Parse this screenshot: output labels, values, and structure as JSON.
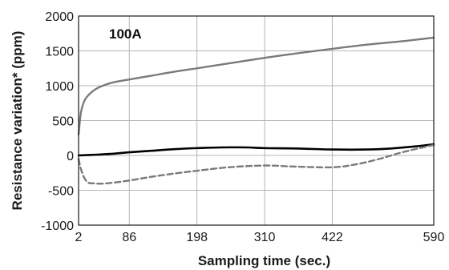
{
  "chart_data": {
    "type": "line",
    "title": "",
    "xlabel": "Sampling time (sec.)",
    "ylabel": "Resistance variation* (ppm)",
    "annotation": "100A",
    "xlim": [
      2,
      590
    ],
    "ylim": [
      -1000,
      2000
    ],
    "xticks": [
      2,
      86,
      198,
      310,
      422,
      590
    ],
    "yticks": [
      2000,
      1500,
      1000,
      500,
      0,
      -500,
      -1000
    ],
    "grid": true,
    "legend": "none",
    "series": [
      {
        "color": "#7a7a7a",
        "style": "solid",
        "x": [
          2,
          6,
          12,
          20,
          30,
          45,
          60,
          86,
          120,
          160,
          198,
          250,
          310,
          360,
          422,
          480,
          540,
          590
        ],
        "y": [
          300,
          620,
          790,
          880,
          950,
          1010,
          1050,
          1090,
          1140,
          1200,
          1250,
          1320,
          1400,
          1460,
          1530,
          1590,
          1640,
          1690
        ]
      },
      {
        "color": "#000000",
        "style": "solid",
        "x": [
          2,
          30,
          60,
          86,
          120,
          160,
          198,
          240,
          280,
          310,
          360,
          422,
          480,
          520,
          560,
          590
        ],
        "y": [
          0,
          10,
          25,
          45,
          65,
          90,
          105,
          115,
          115,
          105,
          100,
          85,
          85,
          100,
          130,
          160
        ]
      },
      {
        "color": "#7a7a7a",
        "style": "dashed",
        "x": [
          2,
          6,
          12,
          18,
          25,
          40,
          60,
          86,
          120,
          160,
          198,
          250,
          310,
          360,
          422,
          460,
          500,
          540,
          590
        ],
        "y": [
          -50,
          -200,
          -330,
          -390,
          -400,
          -405,
          -390,
          -360,
          -310,
          -260,
          -220,
          -170,
          -145,
          -160,
          -170,
          -130,
          -50,
          50,
          150
        ]
      }
    ]
  }
}
